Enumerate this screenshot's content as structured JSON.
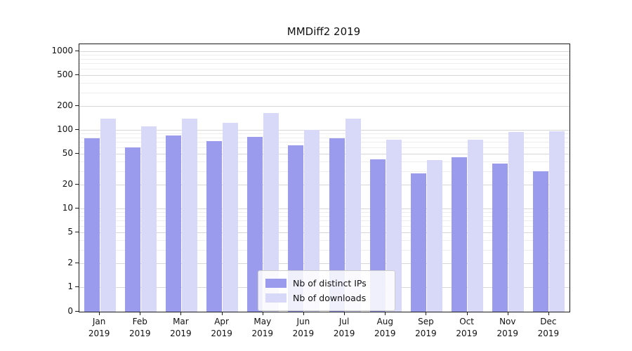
{
  "title": "MMDiff2 2019",
  "chart_data": {
    "type": "bar",
    "title": "MMDiff2 2019",
    "xlabel": "",
    "ylabel": "",
    "scale": "symlog",
    "grid": true,
    "legend_position": "lower center",
    "ylim": [
      0,
      1200
    ],
    "y_ticks": [
      0,
      1,
      2,
      5,
      10,
      20,
      50,
      100,
      200,
      500,
      1000
    ],
    "categories": [
      "Jan",
      "Feb",
      "Mar",
      "Apr",
      "May",
      "Jun",
      "Jul",
      "Aug",
      "Sep",
      "Oct",
      "Nov",
      "Dec"
    ],
    "year": "2019",
    "series": [
      {
        "name": "Nb of distinct IPs",
        "color": "#9b9bee",
        "values": [
          78,
          60,
          85,
          72,
          81,
          64,
          78,
          42,
          28,
          45,
          37,
          30
        ]
      },
      {
        "name": "Nb of downloads",
        "color": "#d8d8f8",
        "values": [
          140,
          112,
          138,
          124,
          165,
          101,
          140,
          75,
          41,
          75,
          95,
          96
        ]
      }
    ]
  }
}
